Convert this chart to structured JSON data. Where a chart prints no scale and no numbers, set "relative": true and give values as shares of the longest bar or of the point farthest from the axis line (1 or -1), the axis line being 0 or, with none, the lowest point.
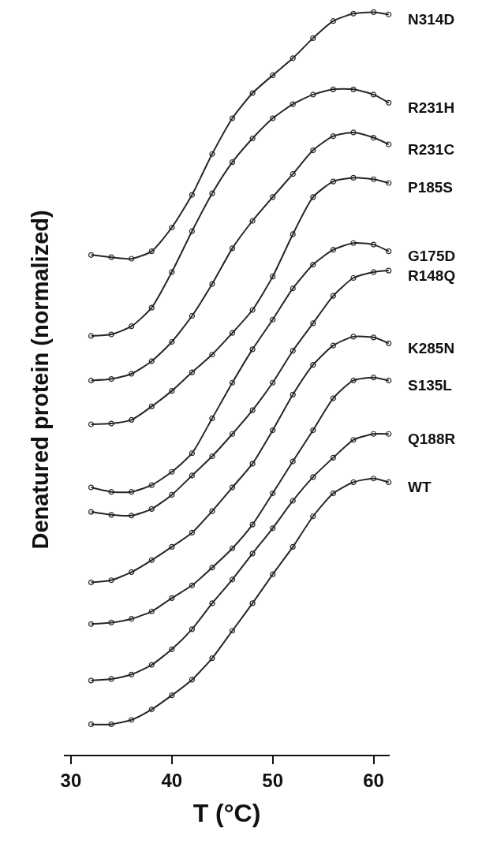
{
  "chart_data": {
    "type": "line",
    "relative": true,
    "marker": "circle",
    "xlabel": "T (°C)",
    "ylabel": "Denatured protein (normalized)",
    "xlim": [
      29.3,
      61.6
    ],
    "xticks": [
      30,
      40,
      50,
      60
    ],
    "x": [
      32,
      34,
      36,
      38,
      40,
      42,
      44,
      46,
      48,
      50,
      52,
      54,
      56,
      58,
      60,
      61.5
    ],
    "series": [
      {
        "name": "N314D",
        "color": "#262626",
        "values": [
          0.673,
          0.67,
          0.668,
          0.678,
          0.71,
          0.754,
          0.809,
          0.857,
          0.891,
          0.915,
          0.938,
          0.965,
          0.988,
          0.998,
          1.0,
          0.997
        ]
      },
      {
        "name": "R231H",
        "color": "#262626",
        "values": [
          0.564,
          0.566,
          0.577,
          0.602,
          0.65,
          0.705,
          0.756,
          0.798,
          0.83,
          0.857,
          0.876,
          0.889,
          0.896,
          0.896,
          0.889,
          0.878
        ]
      },
      {
        "name": "R231C",
        "color": "#262626",
        "values": [
          0.504,
          0.506,
          0.513,
          0.53,
          0.556,
          0.591,
          0.634,
          0.682,
          0.719,
          0.751,
          0.782,
          0.814,
          0.833,
          0.838,
          0.831,
          0.822
        ]
      },
      {
        "name": "P185S",
        "color": "#262626",
        "values": [
          0.445,
          0.446,
          0.451,
          0.469,
          0.49,
          0.515,
          0.539,
          0.568,
          0.599,
          0.644,
          0.701,
          0.751,
          0.772,
          0.777,
          0.775,
          0.77
        ]
      },
      {
        "name": "G175D",
        "color": "#262626",
        "values": [
          0.36,
          0.354,
          0.354,
          0.363,
          0.381,
          0.406,
          0.453,
          0.501,
          0.546,
          0.586,
          0.628,
          0.66,
          0.68,
          0.689,
          0.687,
          0.678
        ]
      },
      {
        "name": "R148Q",
        "color": "#262626",
        "values": [
          0.327,
          0.323,
          0.322,
          0.331,
          0.35,
          0.376,
          0.402,
          0.432,
          0.464,
          0.501,
          0.544,
          0.581,
          0.618,
          0.642,
          0.65,
          0.652
        ]
      },
      {
        "name": "K285N",
        "color": "#262626",
        "values": [
          0.232,
          0.235,
          0.246,
          0.262,
          0.28,
          0.299,
          0.328,
          0.36,
          0.392,
          0.437,
          0.485,
          0.525,
          0.551,
          0.563,
          0.562,
          0.554
        ]
      },
      {
        "name": "S135L",
        "color": "#262626",
        "values": [
          0.176,
          0.178,
          0.183,
          0.193,
          0.211,
          0.228,
          0.252,
          0.278,
          0.31,
          0.352,
          0.395,
          0.437,
          0.48,
          0.504,
          0.508,
          0.504
        ]
      },
      {
        "name": "Q188R",
        "color": "#262626",
        "values": [
          0.1,
          0.102,
          0.108,
          0.121,
          0.142,
          0.169,
          0.204,
          0.236,
          0.271,
          0.305,
          0.342,
          0.374,
          0.4,
          0.424,
          0.432,
          0.432
        ]
      },
      {
        "name": "WT",
        "color": "#262626",
        "values": [
          0.041,
          0.041,
          0.047,
          0.061,
          0.08,
          0.101,
          0.13,
          0.167,
          0.204,
          0.243,
          0.28,
          0.321,
          0.352,
          0.367,
          0.372,
          0.367
        ]
      }
    ]
  }
}
